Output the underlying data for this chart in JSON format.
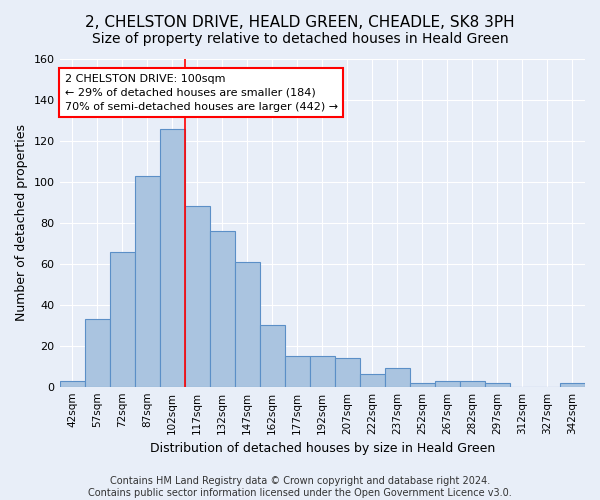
{
  "title": "2, CHELSTON DRIVE, HEALD GREEN, CHEADLE, SK8 3PH",
  "subtitle": "Size of property relative to detached houses in Heald Green",
  "xlabel": "Distribution of detached houses by size in Heald Green",
  "ylabel": "Number of detached properties",
  "footer_line1": "Contains HM Land Registry data © Crown copyright and database right 2024.",
  "footer_line2": "Contains public sector information licensed under the Open Government Licence v3.0.",
  "categories": [
    "42sqm",
    "57sqm",
    "72sqm",
    "87sqm",
    "102sqm",
    "117sqm",
    "132sqm",
    "147sqm",
    "162sqm",
    "177sqm",
    "192sqm",
    "207sqm",
    "222sqm",
    "237sqm",
    "252sqm",
    "267sqm",
    "282sqm",
    "297sqm",
    "312sqm",
    "327sqm",
    "342sqm"
  ],
  "values": [
    3,
    33,
    66,
    103,
    126,
    88,
    76,
    61,
    30,
    15,
    15,
    14,
    6,
    9,
    2,
    3,
    3,
    2,
    0,
    0,
    2
  ],
  "bar_color": "#aac4e0",
  "bar_edge_color": "#5b8fc7",
  "bar_width": 1.0,
  "ylim": [
    0,
    160
  ],
  "yticks": [
    0,
    20,
    40,
    60,
    80,
    100,
    120,
    140,
    160
  ],
  "annotation_line1": "2 CHELSTON DRIVE: 100sqm",
  "annotation_line2": "← 29% of detached houses are smaller (184)",
  "annotation_line3": "70% of semi-detached houses are larger (442) →",
  "annotation_box_color": "white",
  "annotation_box_edge_color": "red",
  "vline_color": "red",
  "vline_pos": 4.5,
  "background_color": "#e8eef8",
  "grid_color": "white",
  "title_fontsize": 11,
  "xlabel_fontsize": 9,
  "ylabel_fontsize": 9,
  "annotation_fontsize": 8,
  "footer_fontsize": 7,
  "tick_fontsize": 7.5
}
